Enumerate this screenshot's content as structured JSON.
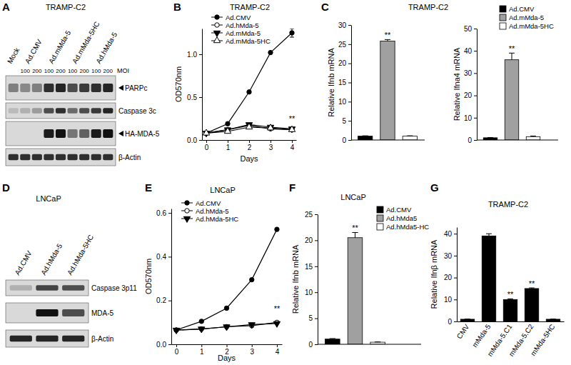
{
  "chart_data": [
    {
      "type": "blot",
      "panel_label": "A",
      "title": "TRAMP-C2",
      "lanes": [
        {
          "name": "Mock"
        },
        {
          "name": "Ad.CMV",
          "moi": [
            100,
            200
          ]
        },
        {
          "name": "Ad.mMda-5",
          "moi": [
            100,
            200
          ]
        },
        {
          "name": "Ad.mMda-5HC",
          "moi": [
            100,
            200
          ]
        },
        {
          "name": "Ad.hMda-5",
          "moi": [
            100,
            200
          ]
        }
      ],
      "moi_label": "MOI",
      "bands": [
        {
          "name": "PARPc",
          "intensity": [
            0.45,
            0.4,
            0.45,
            0.85,
            0.9,
            0.7,
            0.8,
            0.85,
            0.9
          ]
        },
        {
          "name": "Caspase 3c",
          "intensity": [
            0.15,
            0.2,
            0.3,
            0.7,
            0.85,
            0.55,
            0.7,
            0.8,
            0.9
          ]
        },
        {
          "name": "HA-MDA-5",
          "intensity": [
            0,
            0,
            0,
            0.95,
            1,
            0.5,
            0.6,
            0.95,
            1
          ]
        },
        {
          "name": "β-Actin",
          "intensity": [
            0.85,
            0.85,
            0.85,
            0.85,
            0.85,
            0.85,
            0.85,
            0.85,
            0.85
          ]
        }
      ]
    },
    {
      "type": "line",
      "panel_label": "B",
      "title": "TRAMP-C2",
      "x_label": "Days",
      "y_label": "OD570nm",
      "x": [
        0,
        1,
        2,
        3,
        4
      ],
      "xlim": [
        -0.2,
        4.2
      ],
      "xticks": [
        0,
        1,
        2,
        3,
        4
      ],
      "ylim": [
        0,
        1.3
      ],
      "yticks": [
        {
          "value": 0,
          "label": "0.0"
        },
        {
          "value": 0.5,
          "label": "0.5"
        },
        {
          "value": 1,
          "label": "1.0"
        }
      ],
      "grid": false,
      "legend": "top-left",
      "series": [
        {
          "name": "Ad.CMV",
          "color": "#000000",
          "marker": "circle",
          "values": [
            0.08,
            0.19,
            0.56,
            1.02,
            1.25
          ],
          "errors": [
            0.005,
            0.01,
            0.01,
            0.015,
            0.05
          ]
        },
        {
          "name": "Ad.hMda-5",
          "color": "#000000",
          "marker": "circle-open",
          "values": [
            0.08,
            0.12,
            0.17,
            0.13,
            0.12
          ]
        },
        {
          "name": "Ad.mMda-5",
          "color": "#000000",
          "marker": "triangle-down",
          "values": [
            0.08,
            0.12,
            0.18,
            0.15,
            0.13
          ]
        },
        {
          "name": "Ad.mMda-5HC",
          "color": "#000000",
          "marker": "triangle-open",
          "values": [
            0.08,
            0.1,
            0.15,
            0.14,
            0.12
          ]
        }
      ],
      "annotations": [
        {
          "x": 4,
          "y": 0.22,
          "text": "**"
        }
      ]
    },
    {
      "type": "bar",
      "panel_label": "C",
      "title": "TRAMP-C2",
      "y_label": "Relative Ifnb mRNA",
      "categories": [
        "Ad.CMV",
        "Ad.mMda-5",
        "Ad.mMda-5HC"
      ],
      "values": [
        1,
        25.8,
        1
      ],
      "errors": [
        0.1,
        0.4,
        0.1
      ],
      "colors": [
        "#000000",
        "#a0a0a0",
        "#ffffff"
      ],
      "ylim": [
        0,
        30
      ],
      "yticks": [
        0,
        5,
        10,
        15,
        20,
        25,
        30
      ],
      "grid": false,
      "tick_labels": "y",
      "annotations": [
        null,
        "**",
        null
      ]
    },
    {
      "type": "bar",
      "y_label": "Relative Ifna4 mRNA",
      "categories": [
        "Ad.CMV",
        "Ad.mMda-5",
        "Ad.mMda-5HC"
      ],
      "values": [
        1,
        36,
        1.5
      ],
      "errors": [
        0.1,
        3,
        0.3
      ],
      "colors": [
        "#000000",
        "#a0a0a0",
        "#ffffff"
      ],
      "ylim": [
        0,
        50
      ],
      "yticks": [
        0,
        10,
        20,
        30,
        40,
        50
      ],
      "grid": false,
      "tick_labels": "y",
      "legend": "top-right",
      "annotations": [
        null,
        "**",
        null
      ]
    },
    {
      "type": "blot",
      "panel_label": "D",
      "title": "LNCaP",
      "lanes": [
        {
          "name": "Ad.CMV"
        },
        {
          "name": "Ad.hMda-5"
        },
        {
          "name": "Ad.hMda-5HC"
        }
      ],
      "bands": [
        {
          "name": "Caspase 3p11",
          "intensity": [
            0.2,
            0.75,
            0.7
          ]
        },
        {
          "name": "MDA-5",
          "intensity": [
            0,
            1,
            0.7
          ]
        },
        {
          "name": "β-Actin",
          "intensity": [
            0.9,
            0.9,
            0.9
          ]
        }
      ]
    },
    {
      "type": "line",
      "panel_label": "E",
      "title": "LNCaP",
      "x_label": "Days",
      "y_label": "OD570nm",
      "x": [
        0,
        1,
        2,
        3,
        4
      ],
      "xlim": [
        -0.2,
        4.2
      ],
      "xticks": [
        0,
        1,
        2,
        3,
        4
      ],
      "ylim": [
        0,
        0.62
      ],
      "yticks": [
        {
          "value": 0,
          "label": "0.0"
        },
        {
          "value": 0.2,
          "label": "0.2"
        },
        {
          "value": 0.4,
          "label": "0.4"
        },
        {
          "value": 0.6,
          "label": "0.6"
        }
      ],
      "grid": false,
      "legend": "top-left",
      "series": [
        {
          "name": "Ad.CMV",
          "color": "#000000",
          "marker": "circle",
          "values": [
            0.065,
            0.105,
            0.165,
            0.295,
            0.525
          ]
        },
        {
          "name": "Ad.hMda-5",
          "color": "#000000",
          "marker": "circle-open",
          "values": [
            0.065,
            0.07,
            0.08,
            0.085,
            0.1
          ]
        },
        {
          "name": "Ad.hMda-5HC",
          "color": "#000000",
          "marker": "triangle-down",
          "values": [
            0.065,
            0.07,
            0.08,
            0.09,
            0.095
          ]
        }
      ],
      "annotations": [
        {
          "x": 4,
          "y": 0.15,
          "text": "**"
        }
      ]
    },
    {
      "type": "bar",
      "panel_label": "F",
      "title": "LNCaP",
      "y_label": "Relative Ifnb mRNA",
      "categories": [
        "Ad.CMV",
        "Ad.hMda5",
        "Ad.hMda5-HC"
      ],
      "values": [
        1,
        20.5,
        0.4
      ],
      "errors": [
        0.1,
        1,
        0.05
      ],
      "colors": [
        "#000000",
        "#a0a0a0",
        "#ffffff"
      ],
      "ylim": [
        0,
        25
      ],
      "yticks": [
        0,
        5,
        10,
        15,
        20,
        25
      ],
      "grid": false,
      "tick_labels": "y",
      "legend": "top-right",
      "annotations": [
        null,
        "**",
        null
      ]
    },
    {
      "type": "bar",
      "panel_label": "G",
      "title": "TRAMP-C2",
      "y_label": "Relative Ifnβ mRNA",
      "categories": [
        "CMV",
        "mMda-5",
        "mMda-5.C1",
        "mMda-5.C2",
        "mMda-5HC"
      ],
      "values": [
        1,
        39,
        10,
        15,
        1
      ],
      "errors": [
        0.1,
        1,
        0.3,
        0.3,
        0.1
      ],
      "color": "#000000",
      "ylim": [
        0,
        43
      ],
      "yticks": [
        0,
        10,
        20,
        30,
        40
      ],
      "grid": false,
      "annotations": [
        null,
        null,
        "**",
        "**",
        null
      ]
    }
  ]
}
